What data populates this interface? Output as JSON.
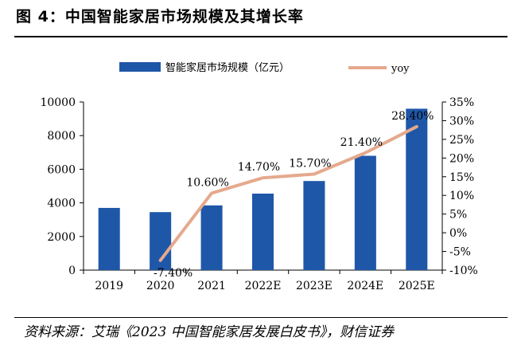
{
  "header": {
    "title": "图 4：中国智能家居市场规模及其增长率"
  },
  "footer": {
    "source": "资料来源：艾瑞《2023 中国智能家居发展白皮书》，财信证券"
  },
  "chart_data": {
    "type": "bar+line",
    "title": "中国智能家居市场规模及其增长率",
    "categories": [
      "2019",
      "2020",
      "2021",
      "2022E",
      "2023E",
      "2024E",
      "2025E"
    ],
    "series": [
      {
        "name": "智能家居市场规模（亿元）",
        "type": "bar",
        "axis": "left",
        "color": "#1f57a8",
        "values": [
          3700,
          3450,
          3850,
          4550,
          5300,
          6800,
          9600
        ]
      },
      {
        "name": "yoy",
        "type": "line",
        "axis": "right",
        "color": "#e5a98d",
        "values": [
          null,
          -7.4,
          10.6,
          14.7,
          15.7,
          21.4,
          28.4
        ],
        "labels": [
          "",
          "-7.40%",
          "10.60%",
          "14.70%",
          "15.70%",
          "21.40%",
          "28.40%"
        ]
      }
    ],
    "y_left": {
      "min": 0,
      "max": 10000,
      "ticks": [
        "0",
        "2000",
        "4000",
        "6000",
        "8000",
        "10000"
      ]
    },
    "y_right": {
      "min": -10,
      "max": 35,
      "ticks": [
        "-10%",
        "-5%",
        "0%",
        "5%",
        "10%",
        "15%",
        "20%",
        "25%",
        "30%",
        "35%"
      ]
    },
    "legend": {
      "position": "top-center",
      "bar_label": "智能家居市场规模（亿元）",
      "line_label": "yoy"
    },
    "grid": false
  }
}
